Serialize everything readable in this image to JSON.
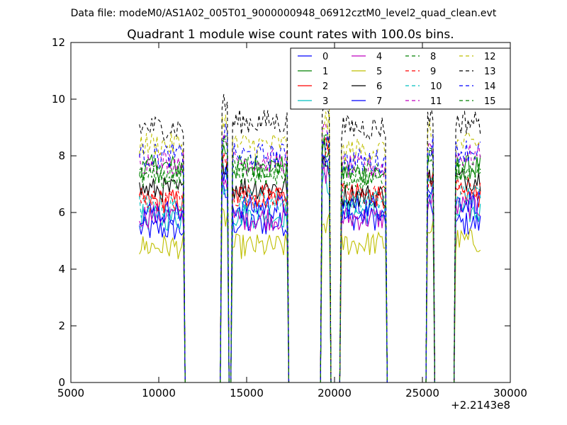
{
  "chart_data": {
    "type": "line",
    "suptitle": "Data file: modeM0/AS1A02_005T01_9000000948_06912cztM0_level2_quad_clean.evt",
    "title": "Quadrant 1 module wise count rates with 100.0s bins.",
    "xlabel": "",
    "ylabel": "",
    "xlim": [
      5000,
      30000
    ],
    "ylim": [
      0,
      12
    ],
    "x_offset_label": "+2.2143e8",
    "xticks": [
      5000,
      10000,
      15000,
      20000,
      25000,
      30000
    ],
    "yticks": [
      0,
      2,
      4,
      6,
      8,
      10,
      12
    ],
    "legend_position": "top-right",
    "legend_columns": 4,
    "gaps": [
      [
        11500,
        13600
      ],
      [
        14000,
        14100
      ],
      [
        17400,
        19200
      ],
      [
        19800,
        20400
      ],
      [
        23000,
        25200
      ],
      [
        25700,
        26200
      ],
      [
        26600,
        26800
      ]
    ],
    "segments": [
      {
        "start": 8900,
        "end": 11400
      },
      {
        "start": 13600,
        "end": 13900
      },
      {
        "start": 14200,
        "end": 17300
      },
      {
        "start": 19300,
        "end": 19700
      },
      {
        "start": 20400,
        "end": 22900
      },
      {
        "start": 25300,
        "end": 25600
      },
      {
        "start": 26900,
        "end": 28300
      }
    ],
    "series": [
      {
        "name": "0",
        "color": "#0000ff",
        "style": "solid",
        "levels": [
          5.4,
          6.6,
          5.6,
          8.0,
          5.8,
          6.2,
          5.6
        ]
      },
      {
        "name": "1",
        "color": "#008000",
        "style": "solid",
        "levels": [
          7.6,
          8.2,
          7.6,
          8.2,
          7.4,
          7.8,
          7.6
        ]
      },
      {
        "name": "2",
        "color": "#ff0000",
        "style": "solid",
        "levels": [
          6.4,
          7.6,
          6.6,
          8.4,
          6.6,
          7.0,
          6.6
        ]
      },
      {
        "name": "3",
        "color": "#00bfbf",
        "style": "solid",
        "levels": [
          5.8,
          7.0,
          5.9,
          7.0,
          6.0,
          6.4,
          6.0
        ]
      },
      {
        "name": "4",
        "color": "#bf00bf",
        "style": "solid",
        "levels": [
          5.9,
          7.2,
          5.8,
          7.4,
          5.8,
          6.4,
          6.2
        ]
      },
      {
        "name": "5",
        "color": "#bfbf00",
        "style": "solid",
        "levels": [
          4.8,
          5.8,
          4.8,
          5.6,
          4.9,
          5.4,
          5.0
        ]
      },
      {
        "name": "6",
        "color": "#000000",
        "style": "solid",
        "levels": [
          6.8,
          7.8,
          6.9,
          7.6,
          6.6,
          7.2,
          7.2
        ]
      },
      {
        "name": "7",
        "color": "#0000ff",
        "style": "solid",
        "levels": [
          6.0,
          7.2,
          6.2,
          7.6,
          6.2,
          6.8,
          6.4
        ]
      },
      {
        "name": "8",
        "color": "#008000",
        "style": "dashed",
        "levels": [
          7.4,
          8.6,
          7.6,
          8.6,
          7.4,
          8.2,
          7.4
        ]
      },
      {
        "name": "9",
        "color": "#ff0000",
        "style": "dashed",
        "levels": [
          6.4,
          7.8,
          6.6,
          8.2,
          6.6,
          7.2,
          6.8
        ]
      },
      {
        "name": "10",
        "color": "#00bfbf",
        "style": "dashed",
        "levels": [
          6.2,
          7.4,
          6.4,
          7.6,
          6.4,
          7.0,
          6.6
        ]
      },
      {
        "name": "11",
        "color": "#bf00bf",
        "style": "dashed",
        "levels": [
          7.8,
          8.8,
          7.8,
          8.8,
          7.6,
          8.4,
          8.0
        ]
      },
      {
        "name": "12",
        "color": "#bfbf00",
        "style": "dashed",
        "levels": [
          8.4,
          9.2,
          8.4,
          9.2,
          8.2,
          8.8,
          8.4
        ]
      },
      {
        "name": "13",
        "color": "#000000",
        "style": "dashed",
        "levels": [
          9.0,
          9.8,
          9.2,
          9.8,
          9.0,
          9.4,
          9.2
        ]
      },
      {
        "name": "14",
        "color": "#0000ff",
        "style": "dashed",
        "levels": [
          8.0,
          8.8,
          8.0,
          8.6,
          7.8,
          8.4,
          8.2
        ]
      },
      {
        "name": "15",
        "color": "#008000",
        "style": "dashed",
        "levels": [
          7.2,
          8.4,
          7.4,
          8.4,
          7.2,
          8.0,
          7.6
        ]
      }
    ]
  }
}
